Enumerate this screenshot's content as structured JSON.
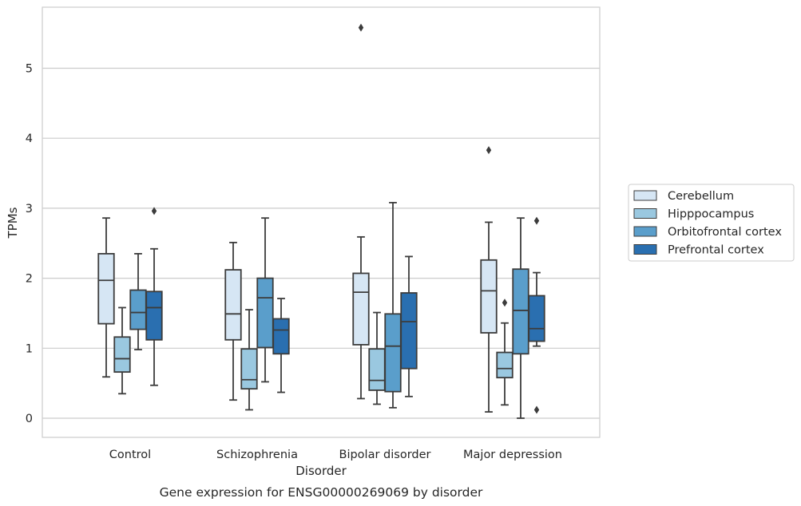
{
  "chart_data": {
    "type": "box",
    "caption": "Gene expression for ENSG00000269069 by disorder",
    "xlabel": "Disorder",
    "ylabel": "TPMs",
    "ylim": [
      -0.27,
      5.88
    ],
    "yticks": [
      0,
      1,
      2,
      3,
      4,
      5
    ],
    "grid": "horizontal",
    "legend_position": "right",
    "categories": [
      "Control",
      "Schizophrenia",
      "Bipolar disorder",
      "Major depression"
    ],
    "series": [
      {
        "name": "Cerebellum",
        "color": "#d6e6f4",
        "boxes": [
          {
            "whislo": 0.59,
            "q1": 1.35,
            "med": 1.97,
            "q3": 2.35,
            "whishi": 2.86,
            "fliers": []
          },
          {
            "whislo": 0.26,
            "q1": 1.12,
            "med": 1.49,
            "q3": 2.12,
            "whishi": 2.51,
            "fliers": []
          },
          {
            "whislo": 0.28,
            "q1": 1.05,
            "med": 1.8,
            "q3": 2.07,
            "whishi": 2.59,
            "fliers": [
              5.58
            ]
          },
          {
            "whislo": 0.09,
            "q1": 1.22,
            "med": 1.82,
            "q3": 2.26,
            "whishi": 2.8,
            "fliers": [
              3.83
            ]
          }
        ]
      },
      {
        "name": "Hipppocampus",
        "color": "#9ac8e0",
        "boxes": [
          {
            "whislo": 0.35,
            "q1": 0.66,
            "med": 0.85,
            "q3": 1.16,
            "whishi": 1.58,
            "fliers": []
          },
          {
            "whislo": 0.12,
            "q1": 0.42,
            "med": 0.55,
            "q3": 0.99,
            "whishi": 1.55,
            "fliers": []
          },
          {
            "whislo": 0.2,
            "q1": 0.4,
            "med": 0.54,
            "q3": 0.99,
            "whishi": 1.51,
            "fliers": []
          },
          {
            "whislo": 0.19,
            "q1": 0.58,
            "med": 0.71,
            "q3": 0.94,
            "whishi": 1.36,
            "fliers": [
              1.65
            ]
          }
        ]
      },
      {
        "name": "Orbitofrontal cortex",
        "color": "#5a9ecb",
        "boxes": [
          {
            "whislo": 0.98,
            "q1": 1.27,
            "med": 1.51,
            "q3": 1.83,
            "whishi": 2.35,
            "fliers": []
          },
          {
            "whislo": 0.52,
            "q1": 1.01,
            "med": 1.72,
            "q3": 2.0,
            "whishi": 2.86,
            "fliers": []
          },
          {
            "whislo": 0.15,
            "q1": 0.38,
            "med": 1.03,
            "q3": 1.49,
            "whishi": 3.08,
            "fliers": []
          },
          {
            "whislo": 0.0,
            "q1": 0.92,
            "med": 1.54,
            "q3": 2.13,
            "whishi": 2.86,
            "fliers": []
          }
        ]
      },
      {
        "name": "Prefrontal cortex",
        "color": "#2a6fb0",
        "boxes": [
          {
            "whislo": 0.47,
            "q1": 1.12,
            "med": 1.58,
            "q3": 1.81,
            "whishi": 2.42,
            "fliers": [
              2.96
            ]
          },
          {
            "whislo": 0.37,
            "q1": 0.92,
            "med": 1.26,
            "q3": 1.42,
            "whishi": 1.71,
            "fliers": []
          },
          {
            "whislo": 0.31,
            "q1": 0.71,
            "med": 1.38,
            "q3": 1.79,
            "whishi": 2.31,
            "fliers": []
          },
          {
            "whislo": 1.03,
            "q1": 1.1,
            "med": 1.28,
            "q3": 1.75,
            "whishi": 2.08,
            "fliers": [
              2.82,
              0.12
            ]
          }
        ]
      }
    ]
  }
}
